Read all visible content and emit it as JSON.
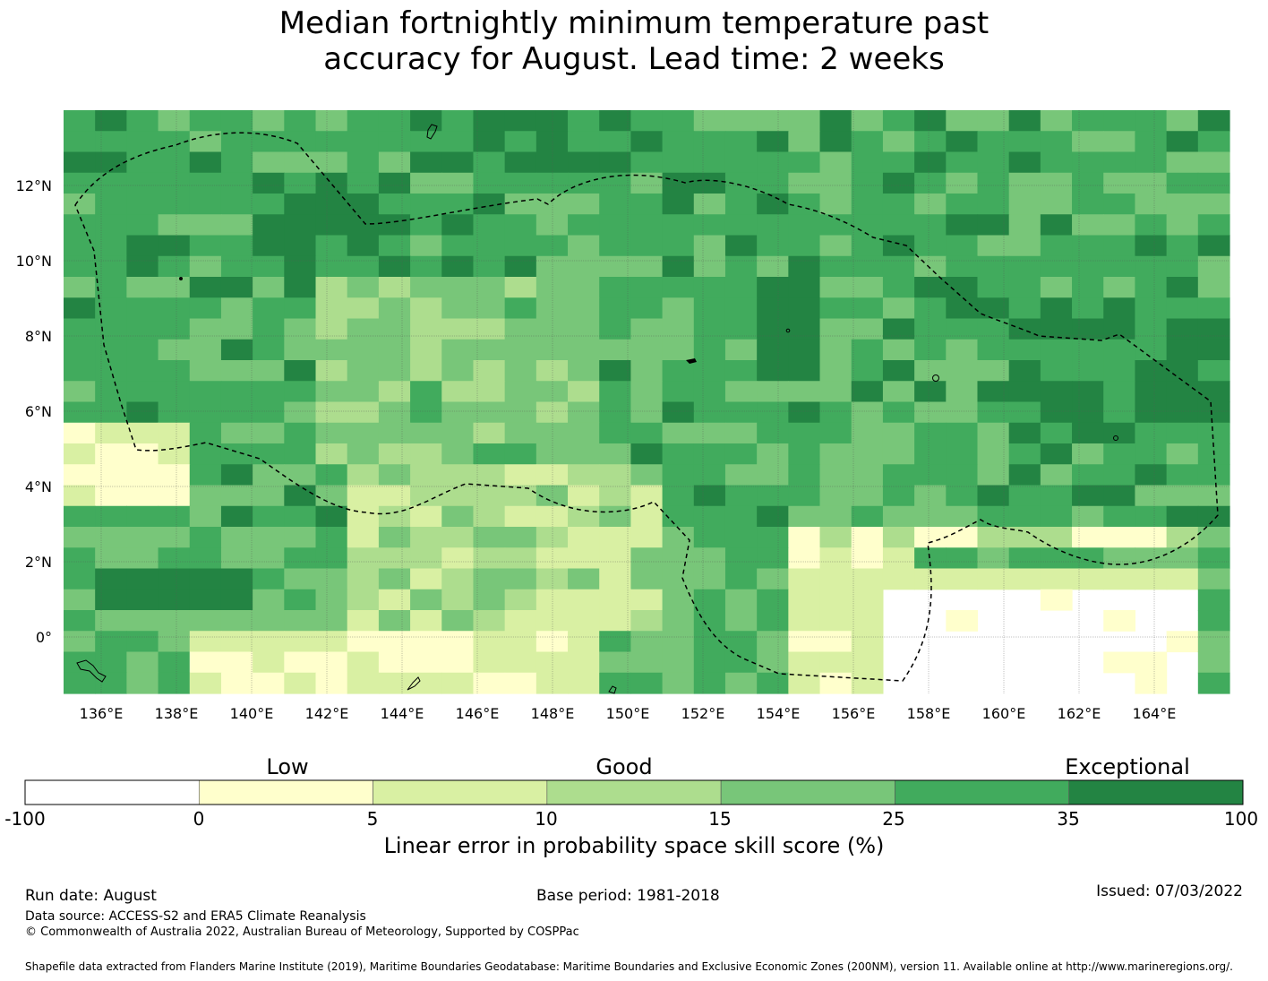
{
  "title_line1": "Median fortnightly minimum temperature past",
  "title_line2": "accuracy for August. Lead time: 2 weeks",
  "map": {
    "lon_labels": [
      "136°E",
      "138°E",
      "140°E",
      "142°E",
      "144°E",
      "146°E",
      "148°E",
      "150°E",
      "152°E",
      "154°E",
      "156°E",
      "158°E",
      "160°E",
      "162°E",
      "164°E"
    ],
    "lat_labels": [
      "12°N",
      "10°N",
      "8°N",
      "6°N",
      "4°N",
      "2°N",
      "0°"
    ],
    "lon_range": [
      135,
      166
    ],
    "lat_range": [
      -1.5,
      14
    ]
  },
  "colorbar": {
    "categories": [
      "Low",
      "Good",
      "Exceptional"
    ],
    "ticks": [
      "-100",
      "0",
      "5",
      "10",
      "15",
      "25",
      "35",
      "100"
    ],
    "colors": [
      "#ffffff",
      "#ffffcc",
      "#d9f0a3",
      "#addd8e",
      "#78c679",
      "#41ab5d",
      "#238443"
    ],
    "label": "Linear error in probability space skill score (%)"
  },
  "footer": {
    "run_date": "Run date: August",
    "base_period": "Base period: 1981-2018",
    "issued": "Issued: 07/03/2022",
    "data_source": "Data source: ACCESS-S2 and ERA5 Climate Reanalysis",
    "copyright": "© Commonwealth of Australia 2022, Australian Bureau of Meteorology, Supported by COSPPac",
    "shapefile": "Shapefile data extracted from Flanders Marine Institute (2019), Maritime Boundaries Geodatabase: Maritime Boundaries and Exclusive Economic Zones (200NM), version 11. Available online at http://www.marineregions.org/."
  }
}
